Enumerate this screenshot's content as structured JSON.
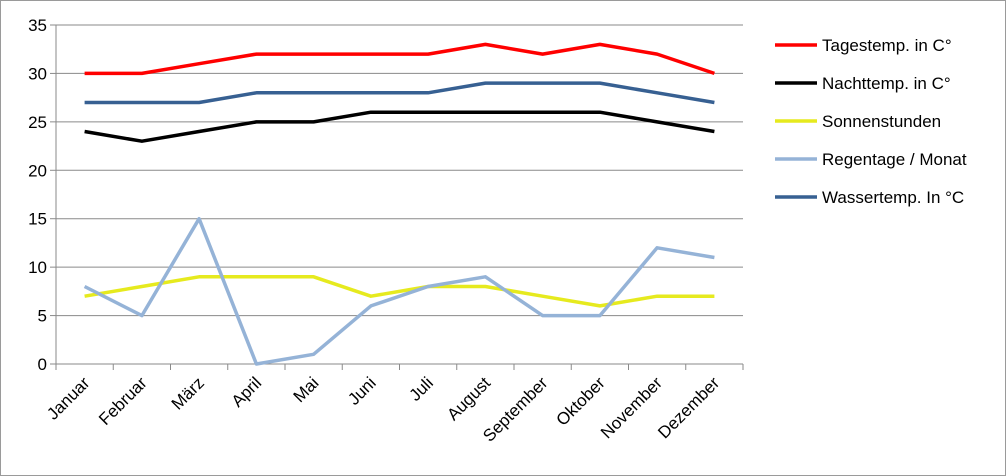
{
  "chart_data": {
    "type": "line",
    "categories": [
      "Januar",
      "Februar",
      "März",
      "April",
      "Mai",
      "Juni",
      "Juli",
      "August",
      "September",
      "Oktober",
      "November",
      "Dezember"
    ],
    "ylim": [
      0,
      35
    ],
    "yticks": [
      "0",
      "5",
      "10",
      "15",
      "20",
      "25",
      "30",
      "35"
    ],
    "grid": true,
    "legend_position": "right",
    "series": [
      {
        "name": "Tagestemp. in C°",
        "color": "#ff0000",
        "values": [
          30,
          30,
          31,
          32,
          32,
          32,
          32,
          33,
          32,
          33,
          32,
          30
        ]
      },
      {
        "name": "Nachttemp. in C°",
        "color": "#000000",
        "values": [
          24,
          23,
          24,
          25,
          25,
          26,
          26,
          26,
          26,
          26,
          25,
          24
        ]
      },
      {
        "name": "Sonnenstunden",
        "color": "#e6ea1e",
        "values": [
          7,
          8,
          9,
          9,
          9,
          7,
          8,
          8,
          7,
          6,
          7,
          7
        ]
      },
      {
        "name": "Regentage / Monat",
        "color": "#95b3d7",
        "values": [
          8,
          5,
          15,
          0,
          1,
          6,
          8,
          9,
          5,
          5,
          12,
          11
        ]
      },
      {
        "name": "Wassertemp. In °C",
        "color": "#376092",
        "values": [
          27,
          27,
          27,
          28,
          28,
          28,
          28,
          29,
          29,
          29,
          28,
          27
        ]
      }
    ]
  }
}
